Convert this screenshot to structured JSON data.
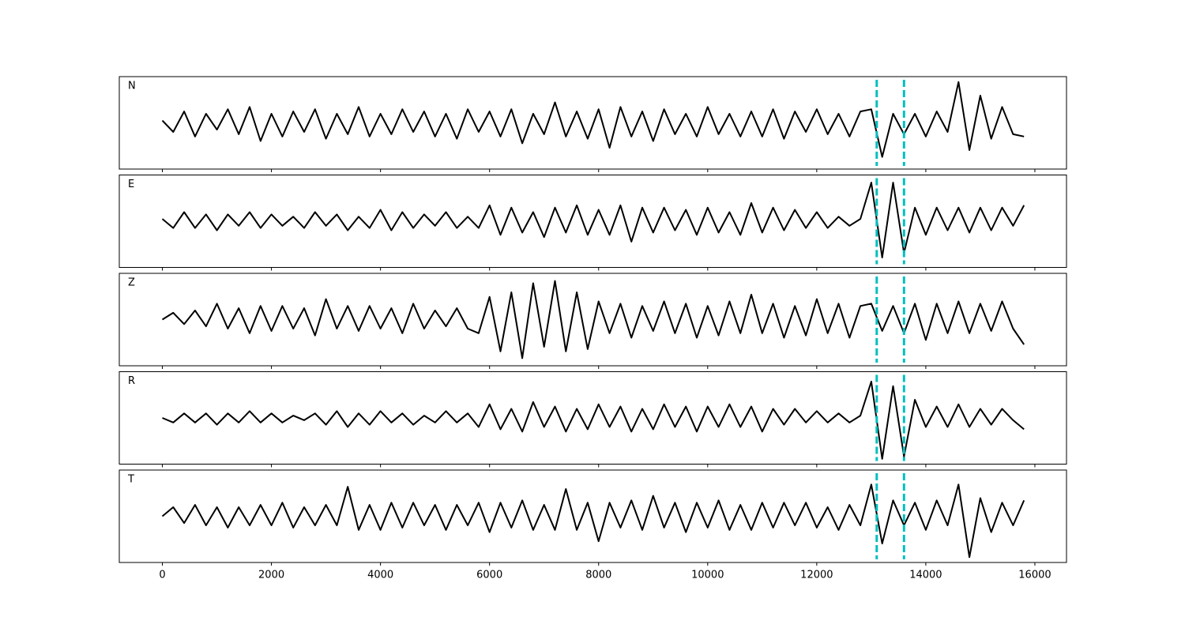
{
  "chart_data": {
    "type": "line",
    "layout": "stacked",
    "x": [
      0,
      200,
      400,
      600,
      800,
      1000,
      1200,
      1400,
      1600,
      1800,
      2000,
      2200,
      2400,
      2600,
      2800,
      3000,
      3200,
      3400,
      3600,
      3800,
      4000,
      4200,
      4400,
      4600,
      4800,
      5000,
      5200,
      5400,
      5600,
      5800,
      6000,
      6200,
      6400,
      6600,
      6800,
      7000,
      7200,
      7400,
      7600,
      7800,
      8000,
      8200,
      8400,
      8600,
      8800,
      9000,
      9200,
      9400,
      9600,
      9800,
      10000,
      10200,
      10400,
      10600,
      10800,
      11000,
      11200,
      11400,
      11600,
      11800,
      12000,
      12200,
      12400,
      12600,
      12800,
      13000,
      13200,
      13400,
      13600,
      13800,
      14000,
      14200,
      14400,
      14600,
      14800,
      15000,
      15200,
      15400,
      15600,
      15800
    ],
    "series": [
      {
        "name": "N",
        "color": "#000000",
        "values": [
          0.05,
          -0.2,
          0.25,
          -0.3,
          0.2,
          -0.15,
          0.3,
          -0.25,
          0.35,
          -0.4,
          0.2,
          -0.3,
          0.25,
          -0.2,
          0.3,
          -0.35,
          0.2,
          -0.25,
          0.35,
          -0.3,
          0.2,
          -0.25,
          0.3,
          -0.2,
          0.25,
          -0.3,
          0.2,
          -0.35,
          0.3,
          -0.2,
          0.25,
          -0.3,
          0.3,
          -0.45,
          0.2,
          -0.25,
          0.45,
          -0.3,
          0.25,
          -0.35,
          0.3,
          -0.55,
          0.35,
          -0.3,
          0.25,
          -0.4,
          0.3,
          -0.25,
          0.2,
          -0.3,
          0.35,
          -0.25,
          0.2,
          -0.3,
          0.25,
          -0.3,
          0.3,
          -0.35,
          0.25,
          -0.2,
          0.3,
          -0.25,
          0.2,
          -0.3,
          0.25,
          0.3,
          -0.75,
          0.2,
          -0.25,
          0.2,
          -0.3,
          0.25,
          -0.2,
          0.9,
          -0.6,
          0.6,
          -0.35,
          0.35,
          -0.25,
          -0.3
        ]
      },
      {
        "name": "E",
        "color": "#000000",
        "values": [
          0.05,
          -0.15,
          0.2,
          -0.15,
          0.15,
          -0.2,
          0.15,
          -0.1,
          0.2,
          -0.15,
          0.15,
          -0.1,
          0.1,
          -0.15,
          0.2,
          -0.1,
          0.15,
          -0.2,
          0.1,
          -0.15,
          0.25,
          -0.2,
          0.2,
          -0.15,
          0.15,
          -0.1,
          0.2,
          -0.15,
          0.1,
          -0.15,
          0.35,
          -0.3,
          0.3,
          -0.25,
          0.2,
          -0.35,
          0.3,
          -0.25,
          0.35,
          -0.3,
          0.25,
          -0.3,
          0.35,
          -0.45,
          0.3,
          -0.25,
          0.3,
          -0.2,
          0.25,
          -0.3,
          0.3,
          -0.25,
          0.2,
          -0.3,
          0.4,
          -0.25,
          0.3,
          -0.2,
          0.25,
          -0.15,
          0.2,
          -0.15,
          0.1,
          -0.1,
          0.05,
          0.85,
          -0.8,
          0.85,
          -0.7,
          0.3,
          -0.3,
          0.3,
          -0.2,
          0.3,
          -0.25,
          0.3,
          -0.2,
          0.3,
          -0.1,
          0.35
        ]
      },
      {
        "name": "Z",
        "color": "#000000",
        "values": [
          0.0,
          0.15,
          -0.1,
          0.2,
          -0.15,
          0.35,
          -0.2,
          0.25,
          -0.3,
          0.3,
          -0.25,
          0.3,
          -0.2,
          0.25,
          -0.35,
          0.45,
          -0.2,
          0.3,
          -0.25,
          0.3,
          -0.2,
          0.25,
          -0.3,
          0.35,
          -0.2,
          0.2,
          -0.15,
          0.25,
          -0.2,
          -0.3,
          0.5,
          -0.7,
          0.6,
          -0.85,
          0.8,
          -0.6,
          0.85,
          -0.7,
          0.6,
          -0.65,
          0.4,
          -0.3,
          0.35,
          -0.4,
          0.3,
          -0.25,
          0.4,
          -0.3,
          0.35,
          -0.4,
          0.3,
          -0.35,
          0.4,
          -0.3,
          0.55,
          -0.3,
          0.35,
          -0.4,
          0.3,
          -0.35,
          0.45,
          -0.3,
          0.35,
          -0.4,
          0.3,
          0.35,
          -0.25,
          0.3,
          -0.3,
          0.35,
          -0.45,
          0.35,
          -0.3,
          0.4,
          -0.3,
          0.35,
          -0.25,
          0.4,
          -0.2,
          -0.55
        ]
      },
      {
        "name": "R",
        "color": "#000000",
        "values": [
          0.0,
          -0.1,
          0.1,
          -0.1,
          0.1,
          -0.15,
          0.1,
          -0.1,
          0.15,
          -0.1,
          0.1,
          -0.1,
          0.05,
          -0.05,
          0.1,
          -0.15,
          0.15,
          -0.2,
          0.1,
          -0.15,
          0.15,
          -0.1,
          0.1,
          -0.15,
          0.05,
          -0.1,
          0.15,
          -0.1,
          0.1,
          -0.2,
          0.3,
          -0.25,
          0.2,
          -0.3,
          0.35,
          -0.2,
          0.25,
          -0.3,
          0.2,
          -0.25,
          0.3,
          -0.2,
          0.25,
          -0.3,
          0.2,
          -0.25,
          0.3,
          -0.2,
          0.25,
          -0.3,
          0.25,
          -0.2,
          0.3,
          -0.2,
          0.25,
          -0.3,
          0.2,
          -0.15,
          0.2,
          -0.1,
          0.15,
          -0.1,
          0.1,
          -0.1,
          0.05,
          0.8,
          -0.9,
          0.7,
          -0.85,
          0.4,
          -0.2,
          0.25,
          -0.2,
          0.3,
          -0.2,
          0.2,
          -0.15,
          0.2,
          -0.05,
          -0.25
        ]
      },
      {
        "name": "T",
        "color": "#000000",
        "values": [
          0.0,
          0.2,
          -0.15,
          0.25,
          -0.2,
          0.2,
          -0.25,
          0.2,
          -0.2,
          0.25,
          -0.2,
          0.3,
          -0.25,
          0.2,
          -0.2,
          0.25,
          -0.2,
          0.65,
          -0.3,
          0.25,
          -0.3,
          0.3,
          -0.25,
          0.3,
          -0.2,
          0.25,
          -0.3,
          0.25,
          -0.2,
          0.3,
          -0.35,
          0.3,
          -0.25,
          0.35,
          -0.3,
          0.25,
          -0.3,
          0.6,
          -0.3,
          0.3,
          -0.55,
          0.3,
          -0.25,
          0.35,
          -0.3,
          0.45,
          -0.25,
          0.3,
          -0.35,
          0.3,
          -0.25,
          0.35,
          -0.3,
          0.25,
          -0.3,
          0.3,
          -0.25,
          0.3,
          -0.2,
          0.3,
          -0.25,
          0.2,
          -0.3,
          0.25,
          -0.2,
          0.7,
          -0.6,
          0.35,
          -0.2,
          0.3,
          -0.3,
          0.35,
          -0.2,
          0.7,
          -0.9,
          0.4,
          -0.35,
          0.3,
          -0.2,
          0.35
        ]
      }
    ],
    "xlim": [
      -790,
      16580
    ],
    "xticks": [
      0,
      2000,
      4000,
      6000,
      8000,
      10000,
      12000,
      14000,
      16000
    ],
    "ylim": [
      -1,
      1
    ],
    "vlines": [
      13100,
      13600
    ],
    "vline_color": "#00bfbf"
  }
}
